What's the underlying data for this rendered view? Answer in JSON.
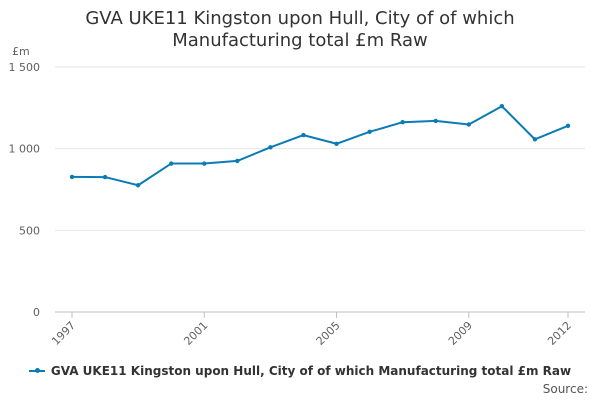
{
  "chart_data": {
    "type": "line",
    "title_line1": "GVA UKE11 Kingston upon Hull, City of of which",
    "title_line2": "Manufacturing total £m Raw",
    "ylabel": "£m",
    "xlabel": "",
    "x": [
      1997,
      1998,
      1999,
      2000,
      2001,
      2002,
      2003,
      2004,
      2005,
      2006,
      2007,
      2008,
      2009,
      2010,
      2011,
      2012
    ],
    "x_tick_labels": [
      "1997",
      "2001",
      "2005",
      "2009",
      "2012"
    ],
    "x_tick_values": [
      1997,
      2001,
      2005,
      2009,
      2012
    ],
    "y_tick_labels": [
      "0",
      "500",
      "1 000",
      "1 500"
    ],
    "y_tick_values": [
      0,
      500,
      1000,
      1500
    ],
    "ylim": [
      0,
      1500
    ],
    "series": [
      {
        "name": "GVA UKE11 Kingston upon Hull, City of of which Manufacturing total £m Raw",
        "color": "#0b7bb5",
        "values": [
          827,
          826,
          776,
          909,
          909,
          925,
          1008,
          1083,
          1030,
          1103,
          1162,
          1170,
          1148,
          1260,
          1057,
          1140
        ]
      }
    ],
    "grid": true,
    "legend_position": "bottom"
  },
  "footer": {
    "source_label": "Source:"
  }
}
